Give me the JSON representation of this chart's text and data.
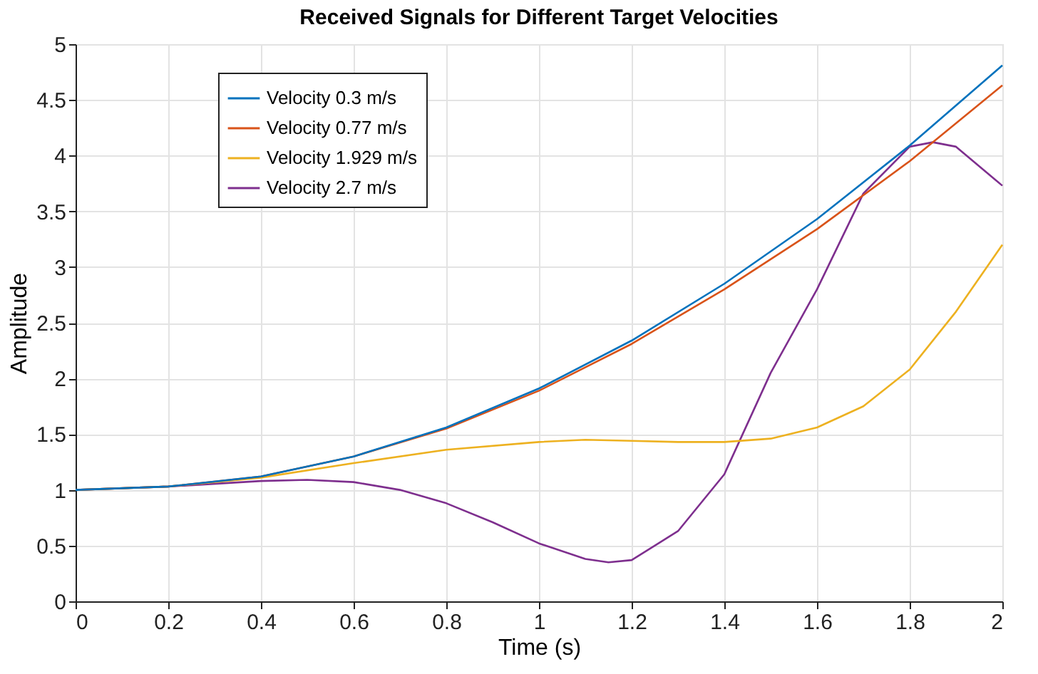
{
  "chart_data": {
    "type": "line",
    "title": "Received Signals for Different Target Velocities",
    "xlabel": "Time (s)",
    "ylabel": "Amplitude",
    "xlim": [
      0,
      2
    ],
    "ylim": [
      0,
      5
    ],
    "xticks": [
      0,
      0.2,
      0.4,
      0.6,
      0.8,
      1,
      1.2,
      1.4,
      1.6,
      1.8,
      2
    ],
    "yticks": [
      0,
      0.5,
      1,
      1.5,
      2,
      2.5,
      3,
      3.5,
      4,
      4.5,
      5
    ],
    "grid": true,
    "legend": "top left",
    "marker": "none",
    "line_style": "solid",
    "series": [
      {
        "name": "Velocity 0.3 m/s",
        "color": "#0072bd",
        "x": [
          0,
          0.2,
          0.4,
          0.6,
          0.8,
          1.0,
          1.2,
          1.4,
          1.6,
          1.8,
          2.0
        ],
        "values": [
          1,
          1.03,
          1.12,
          1.3,
          1.56,
          1.91,
          2.34,
          2.85,
          3.43,
          4.09,
          4.81
        ]
      },
      {
        "name": "Velocity 0.77 m/s",
        "color": "#d95319",
        "x": [
          0,
          0.2,
          0.4,
          0.6,
          0.8,
          1.0,
          1.2,
          1.4,
          1.6,
          1.8,
          2.0
        ],
        "values": [
          1,
          1.03,
          1.12,
          1.3,
          1.55,
          1.89,
          2.31,
          2.8,
          3.34,
          3.95,
          4.63
        ]
      },
      {
        "name": "Velocity 1.929 m/s",
        "color": "#edb120",
        "x": [
          0,
          0.2,
          0.4,
          0.6,
          0.8,
          1.0,
          1.1,
          1.2,
          1.3,
          1.4,
          1.5,
          1.6,
          1.7,
          1.8,
          1.9,
          2.0
        ],
        "values": [
          1,
          1.03,
          1.11,
          1.24,
          1.36,
          1.43,
          1.45,
          1.44,
          1.43,
          1.43,
          1.46,
          1.56,
          1.75,
          2.08,
          2.6,
          3.2
        ]
      },
      {
        "name": "Velocity 2.7 m/s",
        "color": "#7e2f8e",
        "x": [
          0,
          0.2,
          0.4,
          0.5,
          0.6,
          0.7,
          0.8,
          0.9,
          1.0,
          1.1,
          1.15,
          1.2,
          1.3,
          1.4,
          1.5,
          1.6,
          1.7,
          1.8,
          1.85,
          1.9,
          2.0
        ],
        "values": [
          1,
          1.03,
          1.08,
          1.09,
          1.07,
          1.0,
          0.88,
          0.71,
          0.52,
          0.38,
          0.35,
          0.37,
          0.63,
          1.14,
          2.05,
          2.8,
          3.66,
          4.08,
          4.12,
          4.08,
          3.73
        ]
      }
    ]
  }
}
